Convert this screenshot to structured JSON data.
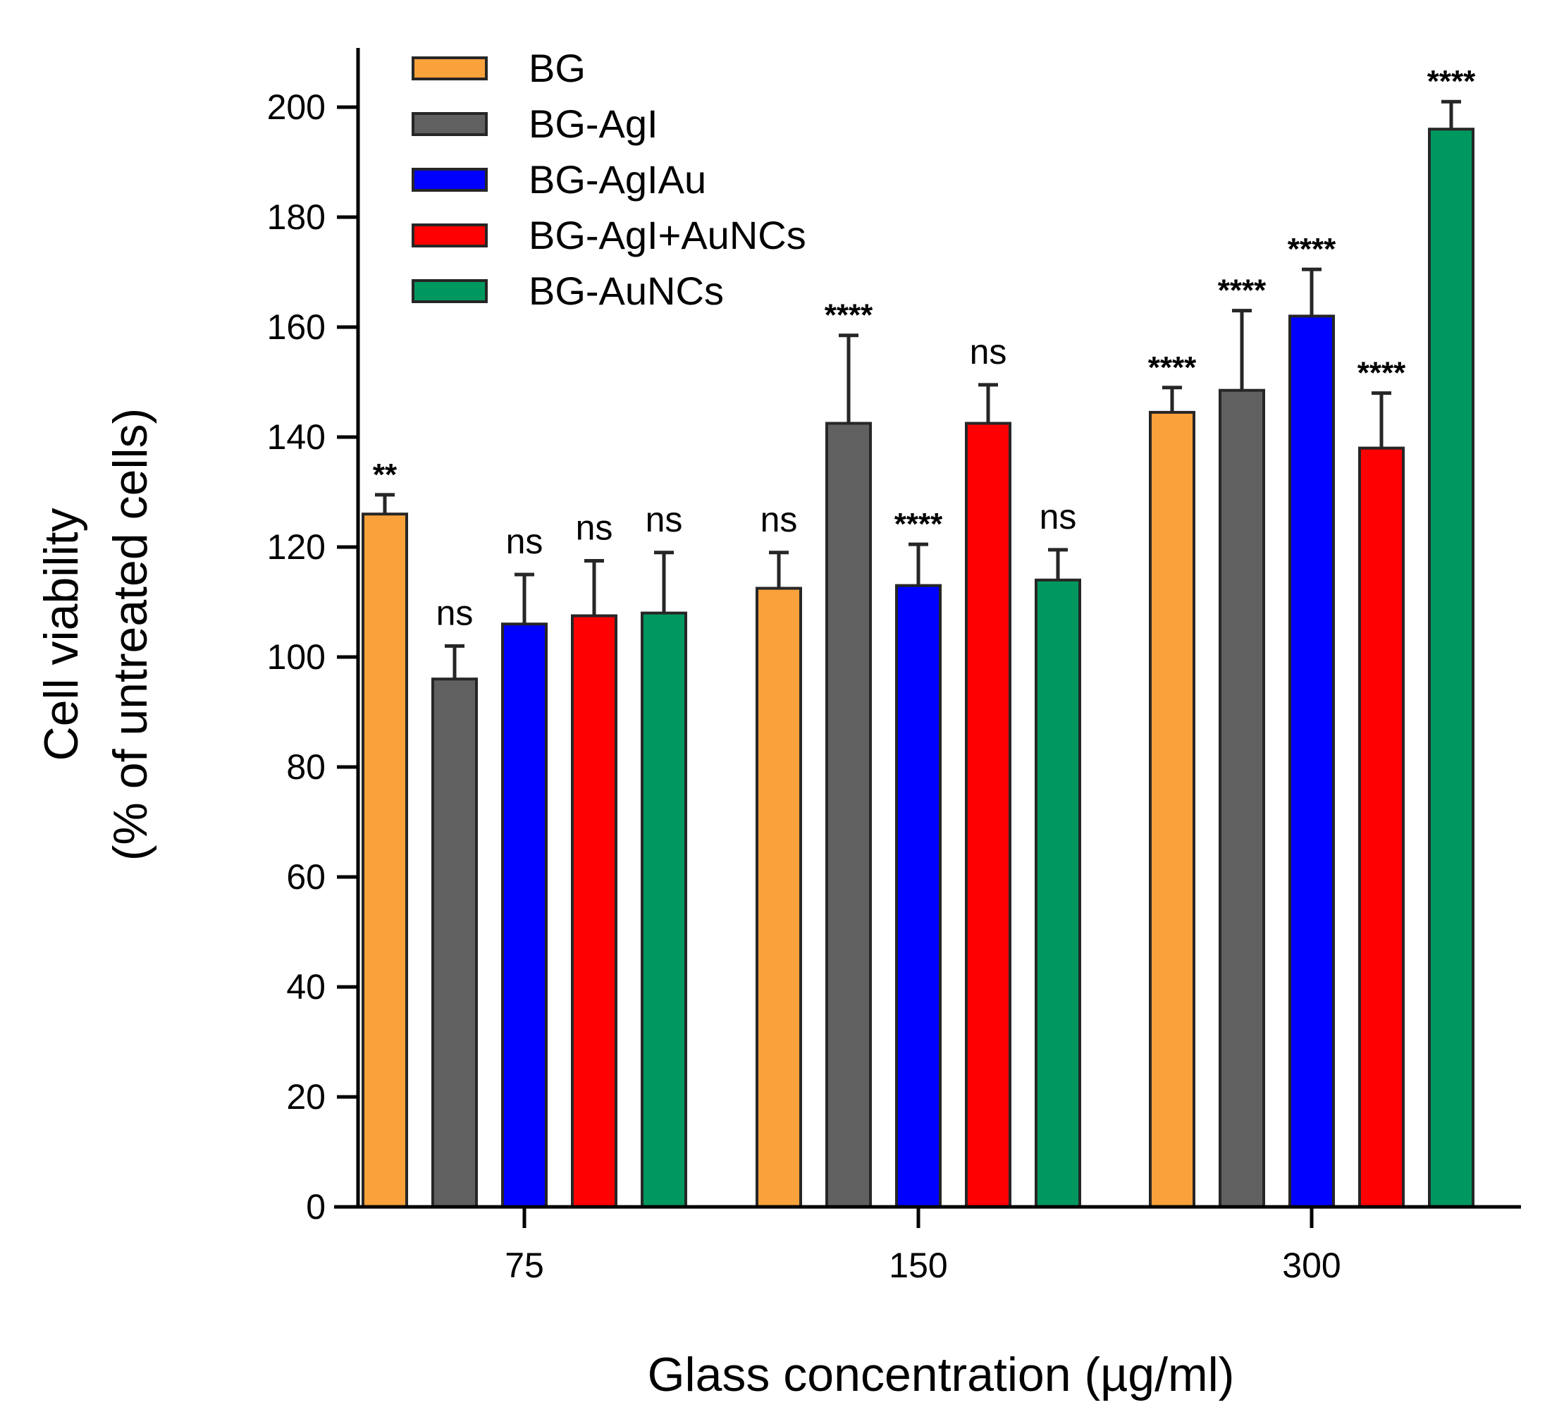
{
  "chart_data": {
    "type": "bar",
    "title": "",
    "xlabel": "Glass concentration (µg/ml)",
    "ylabel_line1": "Cell viability",
    "ylabel_line2": "(% of untreated cells)",
    "ylim": [
      0,
      210
    ],
    "yticks": [
      "0",
      "20",
      "40",
      "60",
      "80",
      "100",
      "120",
      "140",
      "160",
      "180",
      "200"
    ],
    "categories": [
      "75",
      "150",
      "300"
    ],
    "legend_position": "top-left",
    "series": [
      {
        "name": "BG",
        "color": "#F9A13A",
        "values": [
          126,
          112.5,
          144.5
        ],
        "errors": [
          3.5,
          6.5,
          4.5
        ],
        "significance": [
          "**",
          "ns",
          "****"
        ]
      },
      {
        "name": "BG-AgI",
        "color": "#606060",
        "values": [
          96,
          142.5,
          148.5
        ],
        "errors": [
          6,
          16,
          14.5
        ],
        "significance": [
          "ns",
          "****",
          "****"
        ]
      },
      {
        "name": "BG-AgIAu",
        "color": "#0000FF",
        "values": [
          106,
          113,
          162
        ],
        "errors": [
          9,
          7.5,
          8.5
        ],
        "significance": [
          "ns",
          "****",
          "****"
        ]
      },
      {
        "name": "BG-AgI+AuNCs",
        "color": "#FF0000",
        "values": [
          107.5,
          142.5,
          138
        ],
        "errors": [
          10,
          7,
          10
        ],
        "significance": [
          "ns",
          "ns",
          "****"
        ]
      },
      {
        "name": "BG-AuNCs",
        "color": "#00985F",
        "values": [
          108,
          114,
          196
        ],
        "errors": [
          11,
          5.5,
          5
        ],
        "significance": [
          "ns",
          "ns",
          "****"
        ]
      }
    ]
  }
}
